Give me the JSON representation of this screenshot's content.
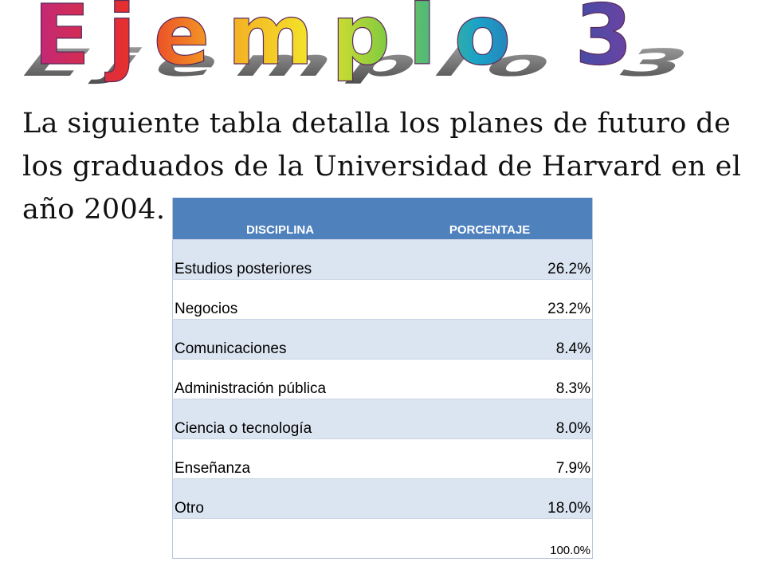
{
  "title": "Ejemplo 3",
  "intro": "La siguiente tabla detalla los planes de futuro de los graduados de la Universidad de Harvard en el año 2004.",
  "table": {
    "headers": [
      "DISCIPLINA",
      "PORCENTAJE"
    ],
    "rows": [
      {
        "discipline": "Estudios posteriores",
        "percent": "26.2%"
      },
      {
        "discipline": "Negocios",
        "percent": "23.2%"
      },
      {
        "discipline": "Comunicaciones",
        "percent": "8.4%"
      },
      {
        "discipline": "Administración pública",
        "percent": "8.3%"
      },
      {
        "discipline": "Ciencia o tecnología",
        "percent": "8.0%"
      },
      {
        "discipline": "Enseñanza",
        "percent": "7.9%"
      },
      {
        "discipline": "Otro",
        "percent": "18.0%"
      }
    ],
    "total": {
      "discipline": "",
      "percent": "100.0%"
    }
  },
  "colors": {
    "header_bg": "#4f81bd",
    "row_band": "#dbe5f1",
    "title_gradient": [
      "#c0287a",
      "#e8302a",
      "#f5a623",
      "#f3e52a",
      "#7ac943",
      "#1aa3c8",
      "#3b4fa8",
      "#7b3fa0"
    ]
  }
}
